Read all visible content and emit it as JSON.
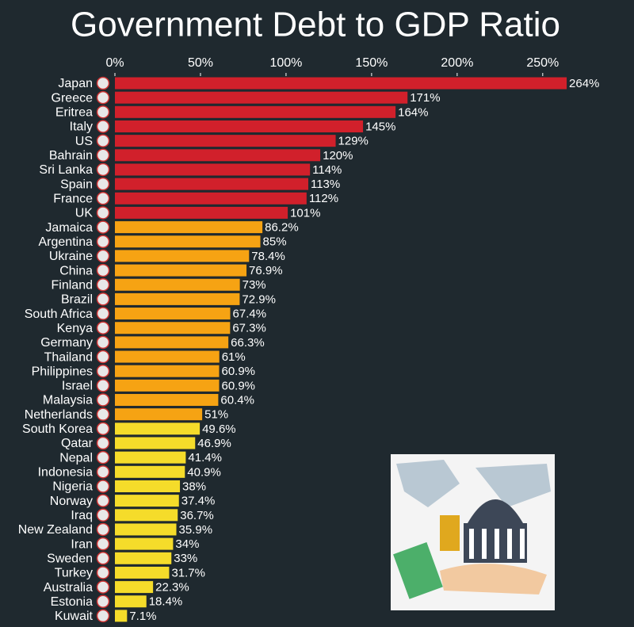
{
  "chart_data": {
    "type": "hbar",
    "title": "Government Debt to GDP Ratio",
    "categories": [
      "Japan",
      "Greece",
      "Eritrea",
      "Italy",
      "US",
      "Bahrain",
      "Sri Lanka",
      "Spain",
      "France",
      "UK",
      "Jamaica",
      "Argentina",
      "Ukraine",
      "China",
      "Finland",
      "Brazil",
      "South Africa",
      "Kenya",
      "Germany",
      "Thailand",
      "Philippines",
      "Israel",
      "Malaysia",
      "Netherlands",
      "South Korea",
      "Qatar",
      "Nepal",
      "Indonesia",
      "Nigeria",
      "Norway",
      "Iraq",
      "New Zealand",
      "Iran",
      "Sweden",
      "Turkey",
      "Australia",
      "Estonia",
      "Kuwait"
    ],
    "values": [
      264,
      171,
      164,
      145,
      129,
      120,
      114,
      113,
      112,
      101,
      86.2,
      85,
      78.4,
      76.9,
      73,
      72.9,
      67.4,
      67.3,
      66.3,
      61,
      60.9,
      60.9,
      60.4,
      51,
      49.6,
      46.9,
      41.4,
      40.9,
      38,
      37.4,
      36.7,
      35.9,
      34,
      33,
      31.7,
      22.3,
      18.4,
      7.1
    ],
    "value_labels": [
      "264%",
      "171%",
      "164%",
      "145%",
      "129%",
      "120%",
      "114%",
      "113%",
      "112%",
      "101%",
      "86.2%",
      "85%",
      "78.4%",
      "76.9%",
      "73%",
      "72.9%",
      "67.4%",
      "67.3%",
      "66.3%",
      "61%",
      "60.9%",
      "60.9%",
      "60.4%",
      "51%",
      "49.6%",
      "46.9%",
      "41.4%",
      "40.9%",
      "38%",
      "37.4%",
      "36.7%",
      "35.9%",
      "34%",
      "33%",
      "31.7%",
      "22.3%",
      "18.4%",
      "7.1%"
    ],
    "colors": [
      "#d1202b",
      "#d1202b",
      "#d1202b",
      "#d1202b",
      "#d1202b",
      "#d1202b",
      "#d1202b",
      "#d1202b",
      "#d1202b",
      "#d1202b",
      "#f6a313",
      "#f6a313",
      "#f6a313",
      "#f6a313",
      "#f6a313",
      "#f6a313",
      "#f6a313",
      "#f6a313",
      "#f6a313",
      "#f6a313",
      "#f6a313",
      "#f6a313",
      "#f6a313",
      "#f6a313",
      "#f5dc2a",
      "#f5dc2a",
      "#f5dc2a",
      "#f5dc2a",
      "#f5dc2a",
      "#f5dc2a",
      "#f5dc2a",
      "#f5dc2a",
      "#f5dc2a",
      "#f5dc2a",
      "#f5dc2a",
      "#f5dc2a",
      "#f5dc2a",
      "#f5dc2a"
    ],
    "xlim": [
      0,
      270
    ],
    "xticks": [
      {
        "value": 0,
        "label": "0%"
      },
      {
        "value": 50,
        "label": "50%"
      },
      {
        "value": 100,
        "label": "100%"
      },
      {
        "value": 150,
        "label": "150%"
      },
      {
        "value": 200,
        "label": "200%"
      },
      {
        "value": 250,
        "label": "250%"
      }
    ]
  }
}
